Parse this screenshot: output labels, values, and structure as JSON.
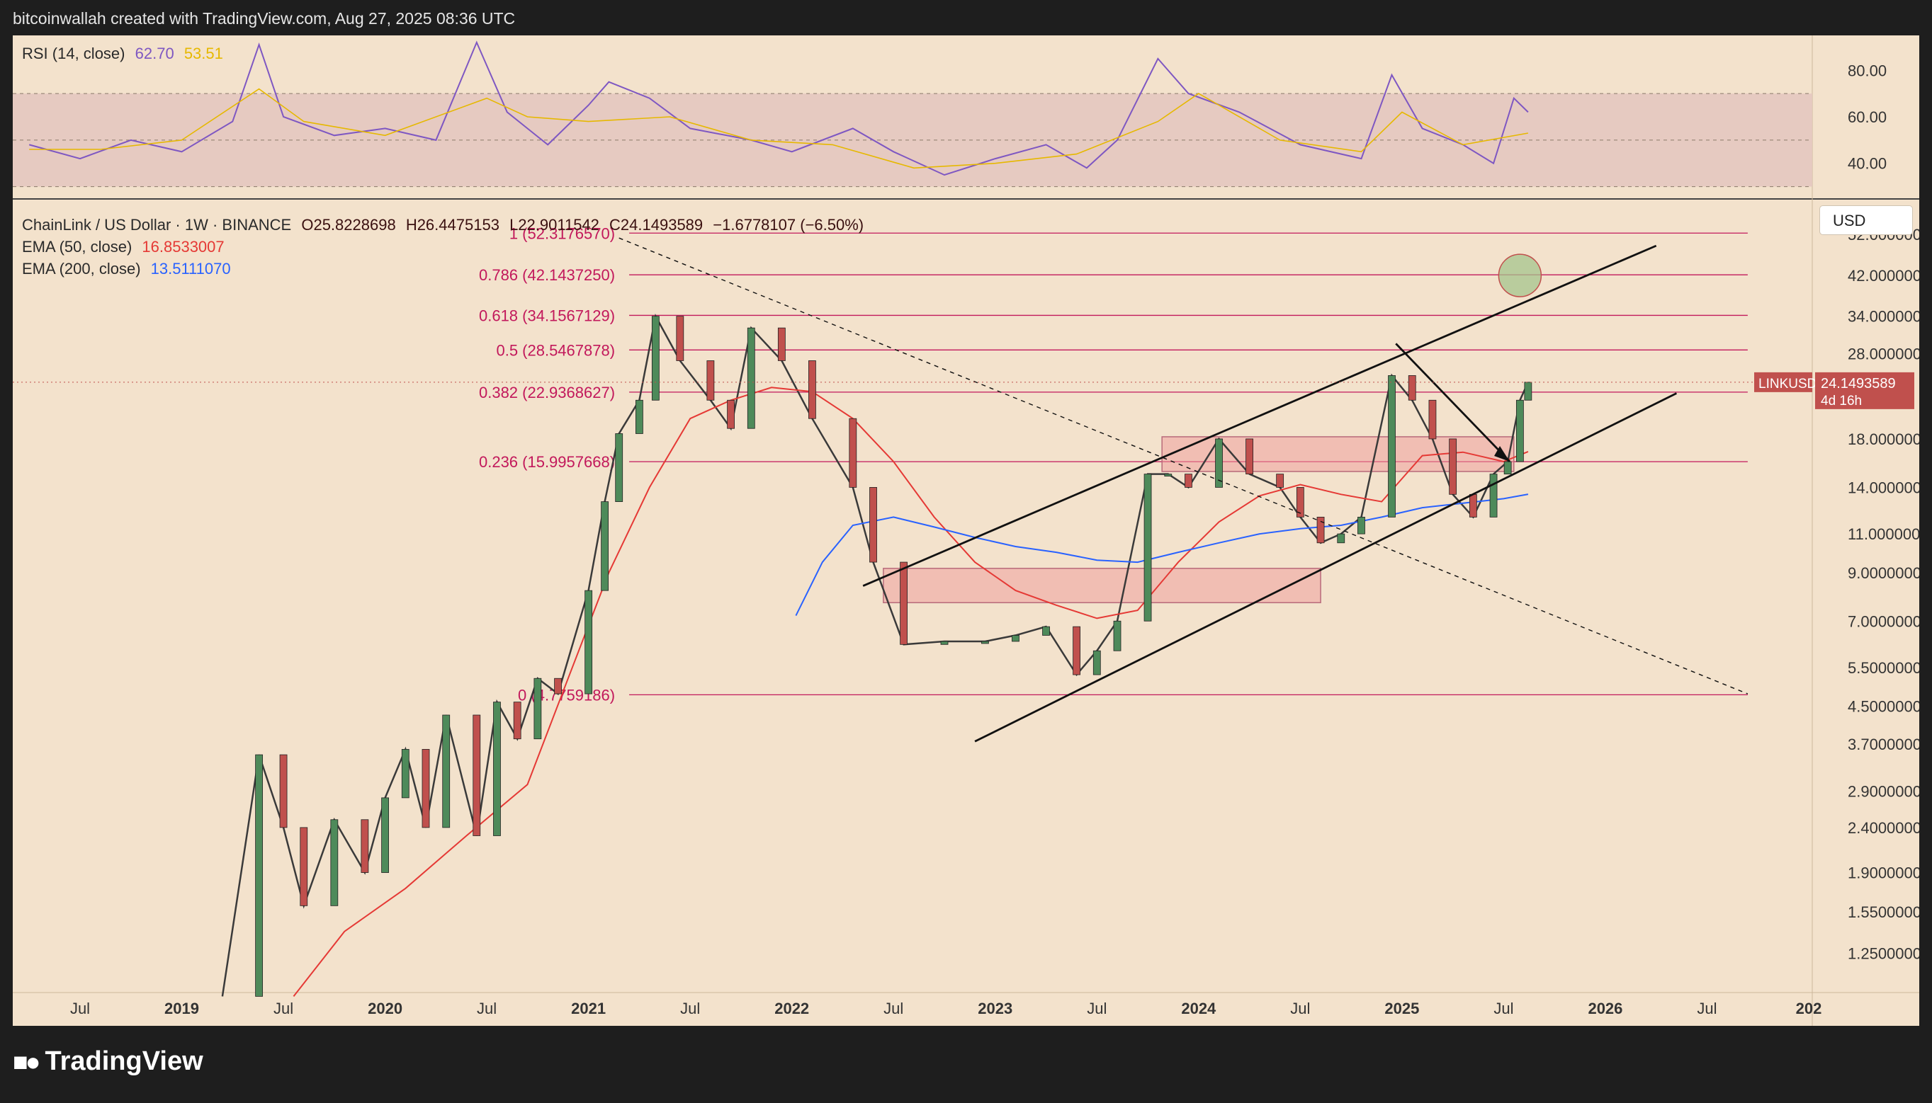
{
  "header": {
    "attribution": "bitcoinwallah created with TradingView.com, Aug 27, 2025 08:36 UTC"
  },
  "rsi_legend": {
    "title": "RSI (14, close)",
    "rsi_value": "62.70",
    "ma_value": "53.51"
  },
  "main_legend": {
    "symbol": "ChainLink / US Dollar · 1W · BINANCE",
    "open": "O25.8228698",
    "high": "H26.4475153",
    "low": "L22.9011542",
    "close": "C24.1493589",
    "change": "−1.6778107 (−6.50%)",
    "ema50_label": "EMA (50, close)",
    "ema50_value": "16.8533007",
    "ema200_label": "EMA (200, close)",
    "ema200_value": "13.5111070"
  },
  "currency": "USD",
  "price_badge": {
    "symbol": "LINKUSD",
    "price": "24.1493589",
    "countdown": "4d 16h"
  },
  "branding": {
    "logo_text": "TradingView"
  },
  "colors": {
    "background": "#f3e2cc",
    "up": "#4e8a5a",
    "down": "#c0504d",
    "ema50": "#e53935",
    "ema200": "#2962ff",
    "rsi": "#7e57c2",
    "rsi_ma": "#e6b800",
    "fib": "#c2185b",
    "zone": "#ef9a9a"
  },
  "chart_data": [
    {
      "type": "line",
      "title": "RSI (14, close)",
      "y_ticks": [
        "80.00",
        "60.00",
        "40.00"
      ],
      "y_tick_values": [
        80,
        60,
        40
      ],
      "bands": [
        70,
        50,
        30
      ],
      "ylim": [
        25,
        95
      ],
      "series": [
        {
          "name": "RSI",
          "x": [
            2018.25,
            2018.5,
            2018.75,
            2019.0,
            2019.25,
            2019.38,
            2019.5,
            2019.75,
            2020.0,
            2020.25,
            2020.45,
            2020.6,
            2020.8,
            2021.0,
            2021.1,
            2021.3,
            2021.5,
            2021.8,
            2022.0,
            2022.3,
            2022.5,
            2022.75,
            2023.0,
            2023.25,
            2023.45,
            2023.6,
            2023.8,
            2023.95,
            2024.2,
            2024.5,
            2024.8,
            2024.95,
            2025.1,
            2025.3,
            2025.45,
            2025.55,
            2025.62
          ],
          "values": [
            48,
            42,
            50,
            45,
            58,
            91,
            60,
            52,
            55,
            50,
            92,
            62,
            48,
            65,
            75,
            68,
            55,
            50,
            45,
            55,
            45,
            35,
            42,
            48,
            38,
            50,
            85,
            70,
            62,
            48,
            42,
            78,
            55,
            48,
            40,
            68,
            62
          ]
        },
        {
          "name": "RSI MA",
          "x": [
            2018.25,
            2018.6,
            2019.0,
            2019.38,
            2019.6,
            2020.0,
            2020.5,
            2020.7,
            2021.0,
            2021.4,
            2021.8,
            2022.2,
            2022.6,
            2023.0,
            2023.4,
            2023.8,
            2024.0,
            2024.4,
            2024.8,
            2025.0,
            2025.3,
            2025.62
          ],
          "values": [
            46,
            46,
            50,
            72,
            58,
            52,
            68,
            60,
            58,
            60,
            50,
            48,
            38,
            40,
            44,
            58,
            70,
            50,
            45,
            62,
            48,
            53
          ]
        }
      ]
    },
    {
      "type": "line",
      "title": "ChainLink / US Dollar · 1W · BINANCE",
      "x_ticks": [
        "Jul",
        "2019",
        "Jul",
        "2020",
        "Jul",
        "2021",
        "Jul",
        "2022",
        "Jul",
        "2023",
        "Jul",
        "2024",
        "Jul",
        "2025",
        "Jul",
        "2026",
        "Jul",
        "202"
      ],
      "x_tick_values": [
        2018.5,
        2019.0,
        2019.5,
        2020.0,
        2020.5,
        2021.0,
        2021.5,
        2022.0,
        2022.5,
        2023.0,
        2023.5,
        2024.0,
        2024.5,
        2025.0,
        2025.5,
        2026.0,
        2026.5,
        2027.0
      ],
      "y_ticks": [
        "52.0000000",
        "42.0000000",
        "34.0000000",
        "28.0000000",
        "18.0000000",
        "14.0000000",
        "11.0000000",
        "9.0000000",
        "7.0000000",
        "5.5000000",
        "4.5000000",
        "3.7000000",
        "2.9000000",
        "2.4000000",
        "1.9000000",
        "1.5500000",
        "1.2500000"
      ],
      "y_tick_values": [
        52,
        42,
        34,
        28,
        18,
        14,
        11,
        9,
        7,
        5.5,
        4.5,
        3.7,
        2.9,
        2.4,
        1.9,
        1.55,
        1.25
      ],
      "y_scale": "log",
      "ylim": [
        1.02,
        62
      ],
      "series": [
        {
          "name": "price",
          "x": [
            2019.2,
            2019.38,
            2019.5,
            2019.6,
            2019.75,
            2019.9,
            2020.0,
            2020.1,
            2020.2,
            2020.3,
            2020.45,
            2020.55,
            2020.65,
            2020.75,
            2020.85,
            2021.0,
            2021.08,
            2021.15,
            2021.25,
            2021.33,
            2021.45,
            2021.6,
            2021.7,
            2021.8,
            2021.95,
            2022.1,
            2022.3,
            2022.4,
            2022.55,
            2022.75,
            2022.95,
            2023.1,
            2023.25,
            2023.4,
            2023.5,
            2023.6,
            2023.75,
            2023.85,
            2023.95,
            2024.1,
            2024.25,
            2024.4,
            2024.5,
            2024.6,
            2024.7,
            2024.8,
            2024.95,
            2025.05,
            2025.15,
            2025.25,
            2025.35,
            2025.45,
            2025.52,
            2025.58,
            2025.62
          ],
          "values": [
            1.0,
            3.5,
            2.4,
            1.6,
            2.5,
            1.9,
            2.8,
            3.6,
            2.4,
            4.3,
            2.3,
            4.6,
            3.8,
            5.2,
            4.8,
            8.2,
            13,
            18.5,
            22,
            34,
            27,
            22,
            19,
            32,
            27,
            20,
            14,
            9.5,
            6.2,
            6.3,
            6.3,
            6.5,
            6.8,
            5.3,
            6.0,
            7.0,
            15,
            15,
            14,
            18,
            15,
            14,
            12,
            10.5,
            11,
            12,
            25,
            22,
            18,
            13.5,
            12,
            15,
            16,
            22,
            24.15
          ]
        },
        {
          "name": "EMA (50, close)",
          "x": [
            2019.55,
            2019.8,
            2020.1,
            2020.4,
            2020.7,
            2020.9,
            2021.1,
            2021.3,
            2021.5,
            2021.7,
            2021.9,
            2022.1,
            2022.3,
            2022.5,
            2022.7,
            2022.9,
            2023.1,
            2023.3,
            2023.5,
            2023.7,
            2023.9,
            2024.1,
            2024.3,
            2024.5,
            2024.7,
            2024.9,
            2025.1,
            2025.3,
            2025.5,
            2025.62
          ],
          "values": [
            1.0,
            1.4,
            1.75,
            2.3,
            3.0,
            5.2,
            9,
            14,
            20,
            22,
            23.5,
            23,
            20,
            16,
            12,
            9.5,
            8.2,
            7.6,
            7.1,
            7.4,
            9.5,
            11.7,
            13.4,
            14.2,
            13.5,
            13.0,
            16.5,
            16.8,
            16.0,
            16.85
          ]
        },
        {
          "name": "EMA (200, close)",
          "x": [
            2022.02,
            2022.15,
            2022.3,
            2022.5,
            2022.7,
            2022.9,
            2023.1,
            2023.3,
            2023.5,
            2023.7,
            2023.9,
            2024.1,
            2024.3,
            2024.5,
            2024.7,
            2024.9,
            2025.1,
            2025.3,
            2025.5,
            2025.62
          ],
          "values": [
            7.2,
            9.5,
            11.5,
            12.0,
            11.4,
            10.8,
            10.3,
            10.0,
            9.6,
            9.5,
            10.0,
            10.5,
            11.0,
            11.3,
            11.5,
            12.0,
            12.6,
            12.9,
            13.2,
            13.51
          ]
        }
      ],
      "fib_levels": [
        {
          "label": "1 (52.3176570)",
          "value": 52.317657
        },
        {
          "label": "0.786 (42.1437250)",
          "value": 42.143725
        },
        {
          "label": "0.618 (34.1567129)",
          "value": 34.1567129
        },
        {
          "label": "0.5 (28.5467878)",
          "value": 28.5467878
        },
        {
          "label": "0.382 (22.9368627)",
          "value": 22.9368627
        },
        {
          "label": "0.236 (15.9957668)",
          "value": 15.9957668
        },
        {
          "label": "0 (4.7759186)",
          "value": 4.7759186
        }
      ],
      "fib_x_range": [
        2021.2,
        2026.7
      ],
      "zones": [
        {
          "x0": 2022.45,
          "x1": 2024.6,
          "y0": 7.7,
          "y1": 9.2
        },
        {
          "x0": 2023.82,
          "x1": 2025.55,
          "y0": 15.2,
          "y1": 18.2
        }
      ],
      "trend_lines": [
        {
          "name": "channel-upper",
          "x0": 2022.35,
          "y0": 8.4,
          "x1": 2026.25,
          "y1": 49
        },
        {
          "name": "channel-lower",
          "x0": 2022.9,
          "y0": 3.75,
          "x1": 2026.35,
          "y1": 22.8
        },
        {
          "name": "falling-trend",
          "x0": 2021.15,
          "y0": 51,
          "x1": 2026.7,
          "y1": 4.8
        },
        {
          "name": "breakdown-arrow",
          "x0": 2024.97,
          "y0": 29.5,
          "x1": 2025.53,
          "y1": 16.0
        }
      ],
      "target_circle": {
        "x": 2025.58,
        "y": 42.0
      }
    }
  ]
}
